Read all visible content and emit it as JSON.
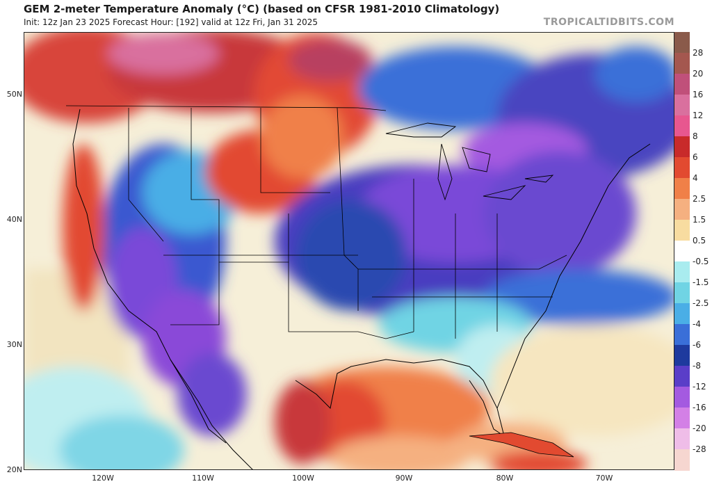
{
  "header": {
    "title": "GEM 2-meter Temperature Anomaly (°C) (based on CFSR 1981-2010 Climatology)",
    "subtitle": "Init: 12z Jan 23 2025   Forecast Hour: [192]   valid at 12z Fri, Jan 31 2025",
    "watermark": "TROPICALTIDBITS.COM"
  },
  "map": {
    "latitude_labels": [
      "50N",
      "40N",
      "30N",
      "20N"
    ],
    "longitude_labels": [
      "120W",
      "110W",
      "100W",
      "90W",
      "80W",
      "70W"
    ]
  },
  "colorbar": {
    "labels": [
      "28",
      "20",
      "16",
      "12",
      "8",
      "6",
      "4",
      "2.5",
      "1.5",
      "0.5",
      "-0.5",
      "-1.5",
      "-2.5",
      "-4",
      "-6",
      "-8",
      "-12",
      "-16",
      "-20",
      "-28"
    ],
    "colors": [
      "#8a5a4a",
      "#a4574f",
      "#c0507a",
      "#d9709e",
      "#e7578f",
      "#c82a2a",
      "#e24a30",
      "#f08048",
      "#f5b080",
      "#f8dca0",
      "#ffffff",
      "#a9ecef",
      "#70d4e4",
      "#4aaee6",
      "#3a6fd8",
      "#1e3a9e",
      "#5a3ec8",
      "#a45ae0",
      "#d380e6",
      "#efbde8",
      "#f6d6d0"
    ]
  }
}
